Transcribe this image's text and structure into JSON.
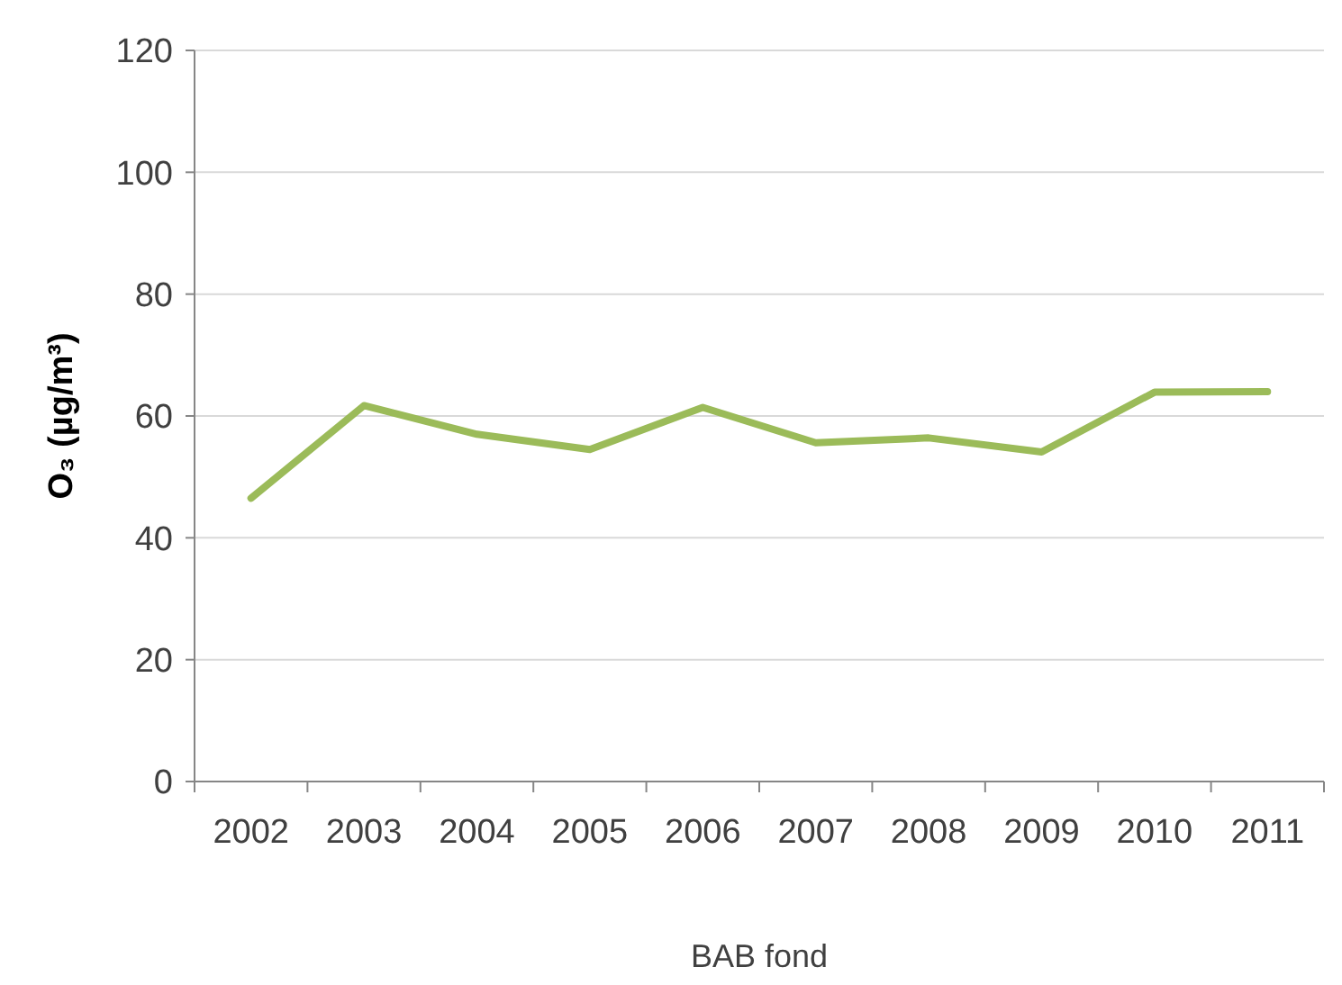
{
  "chart_data": {
    "type": "line",
    "xlabel": "BAB fond",
    "ylabel": "O₃ (µg/m³)",
    "categories": [
      "2002",
      "2003",
      "2004",
      "2005",
      "2006",
      "2007",
      "2008",
      "2009",
      "2010",
      "2011"
    ],
    "series": [
      {
        "color": "#9bbb59",
        "values": [
          46.5,
          61.7,
          57,
          54.5,
          61.4,
          55.6,
          56.4,
          54.1,
          63.9,
          64
        ]
      }
    ],
    "ylim": [
      0,
      120
    ],
    "yticks": [
      0,
      20,
      40,
      60,
      80,
      100,
      120
    ],
    "grid": "y",
    "marker": "none",
    "line_style": "solid"
  }
}
